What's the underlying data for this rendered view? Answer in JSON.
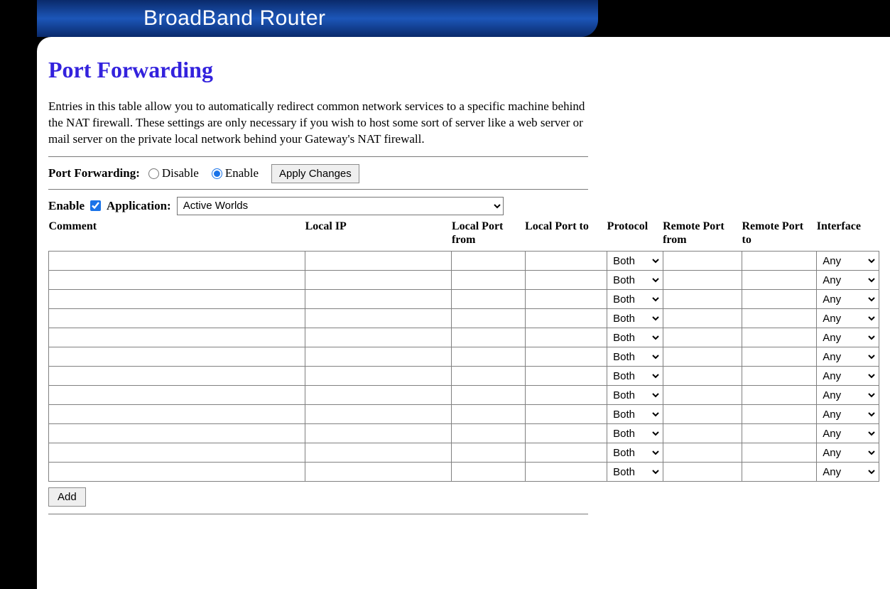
{
  "header": {
    "title": "BroadBand Router"
  },
  "page": {
    "title": "Port Forwarding",
    "description": "Entries in this table allow you to automatically redirect common network services to a specific machine behind the NAT firewall. These settings are only necessary if you wish to host some sort of server like a web server or mail server on the private local network behind your Gateway's NAT firewall."
  },
  "controls": {
    "port_forwarding_label": "Port Forwarding:",
    "disable_label": "Disable",
    "enable_label": "Enable",
    "apply_button": "Apply Changes",
    "enable_checkbox_label": "Enable",
    "application_label": "Application:",
    "application_selected": "Active Worlds",
    "add_button": "Add",
    "pf_mode": "enable",
    "enable_checked": true
  },
  "table": {
    "columns": {
      "comment": "Comment",
      "local_ip": "Local IP",
      "local_port_from": "Local Port from",
      "local_port_to": "Local Port to",
      "protocol": "Protocol",
      "remote_port_from": "Remote Port from",
      "remote_port_to": "Remote Port to",
      "interface": "Interface"
    },
    "protocol_default": "Both",
    "interface_default": "Any",
    "row_count": 12,
    "column_widths": {
      "comment": 350,
      "local_ip": 200,
      "lp_from": 100,
      "lp_to": 112,
      "protocol": 76,
      "rp_from": 108,
      "rp_to": 102,
      "interface": 85
    },
    "colors": {
      "title_color": "#3322dd",
      "banner_gradient_from": "#0a2a6b",
      "banner_gradient_mid": "#1c56b8",
      "banner_gradient_to": "#0a2a6b",
      "border_color": "#808080",
      "separator_color": "#7a7a7a",
      "button_bg": "#efefef",
      "button_border": "#8a8a8a",
      "background": "#ffffff"
    }
  }
}
